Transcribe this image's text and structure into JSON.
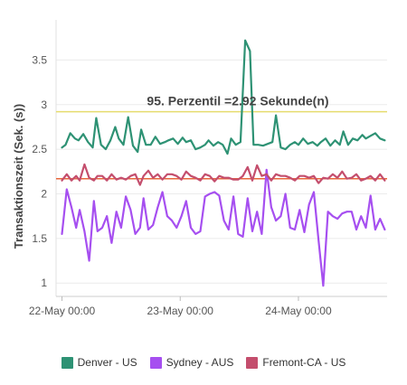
{
  "chart_data": {
    "type": "line",
    "ylabel": "Transaktionszeit (Sek. (s))",
    "ylim": [
      0.85,
      3.95
    ],
    "yticks": [
      1,
      1.5,
      2,
      2.5,
      3,
      3.5
    ],
    "ytick_labels": [
      "1",
      "1.5",
      "2",
      "2.5",
      "3",
      "3.5"
    ],
    "xlim": [
      -0.05,
      2.75
    ],
    "xticks": [
      0,
      1,
      2
    ],
    "xtick_labels": [
      "22-May 00:00",
      "23-May 00:00",
      "24-May 00:00"
    ],
    "grid": true,
    "legend_position": "bottom",
    "annotation": {
      "text": "95. Perzentil =2.92  Sekunde(n)",
      "value": 2.92,
      "color": "#e6dc6e"
    },
    "reference_line": {
      "value": 2.17,
      "color": "#e8663a"
    },
    "series": [
      {
        "name": "Denver - US",
        "color": "#2e9274",
        "x": [
          0.0,
          0.03,
          0.07,
          0.11,
          0.14,
          0.18,
          0.22,
          0.26,
          0.29,
          0.33,
          0.37,
          0.41,
          0.45,
          0.48,
          0.52,
          0.56,
          0.6,
          0.64,
          0.67,
          0.71,
          0.75,
          0.79,
          0.83,
          0.87,
          0.9,
          0.94,
          0.98,
          1.02,
          1.05,
          1.09,
          1.13,
          1.17,
          1.21,
          1.24,
          1.28,
          1.32,
          1.36,
          1.4,
          1.43,
          1.47,
          1.51,
          1.55,
          1.59,
          1.62,
          1.66,
          1.7,
          1.74,
          1.78,
          1.81,
          1.85,
          1.89,
          1.93,
          1.97,
          2.0,
          2.04,
          2.08,
          2.12,
          2.16,
          2.19,
          2.23,
          2.27,
          2.31,
          2.35,
          2.38,
          2.42,
          2.46,
          2.5,
          2.54,
          2.57,
          2.61,
          2.65,
          2.69,
          2.73
        ],
        "values": [
          2.52,
          2.55,
          2.68,
          2.62,
          2.6,
          2.67,
          2.58,
          2.52,
          2.85,
          2.55,
          2.5,
          2.6,
          2.75,
          2.62,
          2.55,
          2.86,
          2.54,
          2.47,
          2.72,
          2.55,
          2.55,
          2.64,
          2.56,
          2.58,
          2.6,
          2.62,
          2.56,
          2.63,
          2.58,
          2.6,
          2.5,
          2.52,
          2.55,
          2.6,
          2.54,
          2.58,
          2.55,
          2.45,
          2.62,
          2.55,
          2.58,
          3.72,
          3.6,
          2.55,
          2.55,
          2.54,
          2.56,
          2.58,
          2.88,
          2.52,
          2.5,
          2.55,
          2.58,
          2.55,
          2.62,
          2.56,
          2.58,
          2.54,
          2.58,
          2.62,
          2.54,
          2.6,
          2.55,
          2.7,
          2.55,
          2.62,
          2.6,
          2.66,
          2.62,
          2.65,
          2.68,
          2.62,
          2.6
        ]
      },
      {
        "name": "Sydney - AUS",
        "color": "#a64ff0",
        "x": [
          0.0,
          0.04,
          0.08,
          0.12,
          0.15,
          0.19,
          0.23,
          0.27,
          0.3,
          0.34,
          0.38,
          0.42,
          0.46,
          0.5,
          0.54,
          0.58,
          0.62,
          0.66,
          0.69,
          0.73,
          0.77,
          0.81,
          0.85,
          0.89,
          0.93,
          0.97,
          1.01,
          1.05,
          1.09,
          1.13,
          1.17,
          1.21,
          1.25,
          1.29,
          1.33,
          1.37,
          1.41,
          1.45,
          1.49,
          1.53,
          1.57,
          1.61,
          1.65,
          1.69,
          1.73,
          1.77,
          1.81,
          1.85,
          1.89,
          1.93,
          1.97,
          2.01,
          2.05,
          2.09,
          2.13,
          2.17,
          2.21,
          2.25,
          2.29,
          2.33,
          2.37,
          2.41,
          2.45,
          2.49,
          2.53,
          2.57,
          2.61,
          2.65,
          2.69,
          2.73
        ],
        "values": [
          1.55,
          2.05,
          1.85,
          1.62,
          1.82,
          1.58,
          1.25,
          1.92,
          1.58,
          1.62,
          1.75,
          1.45,
          1.8,
          1.62,
          1.97,
          1.82,
          1.55,
          1.62,
          1.95,
          1.6,
          1.65,
          1.85,
          2.02,
          1.75,
          1.7,
          1.62,
          1.75,
          1.92,
          1.62,
          1.55,
          1.58,
          1.97,
          2.0,
          2.02,
          1.98,
          1.7,
          1.6,
          1.97,
          1.55,
          1.52,
          1.95,
          1.58,
          1.8,
          1.55,
          2.27,
          1.85,
          1.7,
          1.75,
          2.0,
          1.62,
          1.6,
          1.82,
          1.57,
          1.88,
          2.02,
          1.48,
          0.97,
          1.8,
          1.75,
          1.72,
          1.78,
          1.8,
          1.8,
          1.6,
          1.75,
          1.62,
          1.98,
          1.6,
          1.72,
          1.6
        ]
      },
      {
        "name": "Fremont-CA - US",
        "color": "#c44e6d",
        "x": [
          0.0,
          0.04,
          0.08,
          0.12,
          0.15,
          0.19,
          0.23,
          0.27,
          0.3,
          0.34,
          0.38,
          0.42,
          0.46,
          0.5,
          0.54,
          0.58,
          0.62,
          0.66,
          0.69,
          0.73,
          0.77,
          0.81,
          0.85,
          0.89,
          0.93,
          0.97,
          1.01,
          1.05,
          1.09,
          1.13,
          1.17,
          1.21,
          1.25,
          1.29,
          1.33,
          1.37,
          1.41,
          1.45,
          1.49,
          1.53,
          1.57,
          1.61,
          1.65,
          1.69,
          1.73,
          1.77,
          1.81,
          1.85,
          1.89,
          1.93,
          1.97,
          2.01,
          2.05,
          2.09,
          2.13,
          2.17,
          2.21,
          2.25,
          2.29,
          2.33,
          2.37,
          2.41,
          2.45,
          2.49,
          2.53,
          2.57,
          2.61,
          2.65,
          2.69,
          2.73
        ],
        "values": [
          2.15,
          2.22,
          2.15,
          2.2,
          2.15,
          2.33,
          2.18,
          2.15,
          2.2,
          2.2,
          2.15,
          2.22,
          2.16,
          2.18,
          2.16,
          2.2,
          2.22,
          2.1,
          2.2,
          2.26,
          2.18,
          2.22,
          2.16,
          2.22,
          2.22,
          2.2,
          2.16,
          2.25,
          2.2,
          2.18,
          2.15,
          2.22,
          2.2,
          2.14,
          2.2,
          2.18,
          2.18,
          2.16,
          2.16,
          2.2,
          2.3,
          2.15,
          2.32,
          2.2,
          2.22,
          2.15,
          2.22,
          2.2,
          2.2,
          2.18,
          2.15,
          2.2,
          2.2,
          2.18,
          2.2,
          2.12,
          2.18,
          2.17,
          2.22,
          2.18,
          2.25,
          2.17,
          2.18,
          2.22,
          2.15,
          2.17,
          2.2,
          2.15,
          2.22,
          2.15
        ]
      }
    ]
  },
  "legend": {
    "items": [
      {
        "label": "Denver - US",
        "color": "#2e9274"
      },
      {
        "label": "Sydney - AUS",
        "color": "#a64ff0"
      },
      {
        "label": "Fremont-CA - US",
        "color": "#c44e6d"
      }
    ]
  }
}
